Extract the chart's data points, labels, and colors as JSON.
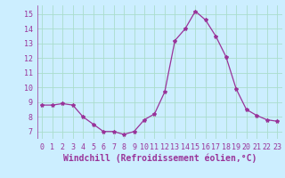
{
  "x": [
    0,
    1,
    2,
    3,
    4,
    5,
    6,
    7,
    8,
    9,
    10,
    11,
    12,
    13,
    14,
    15,
    16,
    17,
    18,
    19,
    20,
    21,
    22,
    23
  ],
  "y": [
    8.8,
    8.8,
    8.9,
    8.8,
    8.0,
    7.5,
    7.0,
    7.0,
    6.8,
    7.0,
    7.8,
    8.2,
    9.7,
    13.2,
    14.0,
    15.2,
    14.6,
    13.5,
    12.1,
    9.9,
    8.5,
    8.1,
    7.8,
    7.7
  ],
  "line_color": "#993399",
  "marker": "*",
  "marker_size": 3,
  "bg_color": "#cceeff",
  "grid_color": "#aaddcc",
  "xlabel": "Windchill (Refroidissement éolien,°C)",
  "xlabel_fontsize": 7,
  "xlabel_color": "#993399",
  "tick_color": "#993399",
  "tick_fontsize": 6,
  "ylim": [
    6.5,
    15.6
  ],
  "yticks": [
    7,
    8,
    9,
    10,
    11,
    12,
    13,
    14,
    15
  ],
  "xlim": [
    -0.5,
    23.5
  ],
  "xticks": [
    0,
    1,
    2,
    3,
    4,
    5,
    6,
    7,
    8,
    9,
    10,
    11,
    12,
    13,
    14,
    15,
    16,
    17,
    18,
    19,
    20,
    21,
    22,
    23
  ]
}
